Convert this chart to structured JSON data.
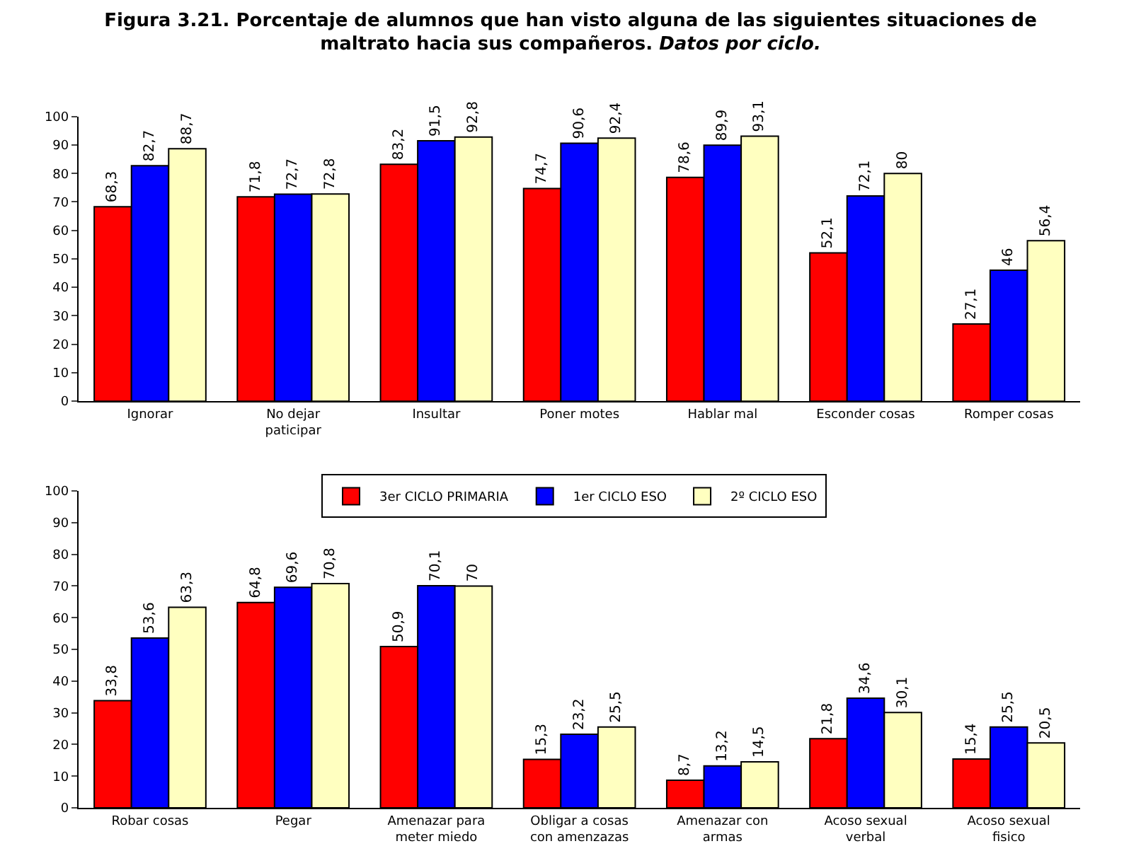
{
  "chart_data": [
    {
      "type": "bar",
      "title": "Figura 3.21. Porcentaje de alumnos que han visto alguna de las siguientes situaciones de maltrato hacia sus compañeros.",
      "subtitle": "Datos por ciclo.",
      "categories": [
        "Ignorar",
        "No dejar paticipar",
        "Insultar",
        "Poner motes",
        "Hablar mal",
        "Esconder cosas",
        "Romper cosas"
      ],
      "ylim": [
        0,
        100
      ],
      "yticks": [
        0,
        10,
        20,
        30,
        40,
        50,
        60,
        70,
        80,
        90,
        100
      ],
      "grid": false,
      "legend": false,
      "series": [
        {
          "color": "#ff0000",
          "values": [
            68.3,
            71.8,
            83.2,
            74.7,
            78.6,
            52.1,
            27.1
          ],
          "value_labels": [
            "68,3",
            "71,8",
            "83,2",
            "74,7",
            "78,6",
            "52,1",
            "27,1"
          ]
        },
        {
          "color": "#0000ff",
          "values": [
            82.7,
            72.7,
            91.5,
            90.6,
            89.9,
            72.1,
            46
          ],
          "value_labels": [
            "82,7",
            "72,7",
            "91,5",
            "90,6",
            "89,9",
            "72,1",
            "46"
          ]
        },
        {
          "color": "#ffffc0",
          "values": [
            88.7,
            72.8,
            92.8,
            92.4,
            93.1,
            80,
            56.4
          ],
          "value_labels": [
            "88,7",
            "72,8",
            "92,8",
            "92,4",
            "93,1",
            "80",
            "56,4"
          ]
        }
      ]
    },
    {
      "type": "bar",
      "categories": [
        "Robar cosas",
        "Pegar",
        "Amenazar para meter miedo",
        "Obligar a cosas con amenzazas",
        "Amenazar con armas",
        "Acoso sexual verbal",
        "Acoso sexual fisico"
      ],
      "ylim": [
        0,
        100
      ],
      "yticks": [
        0,
        10,
        20,
        30,
        40,
        50,
        60,
        70,
        80,
        90,
        100
      ],
      "grid": false,
      "legend": "top",
      "series": [
        {
          "name": "3er CICLO PRIMARIA",
          "color": "#ff0000",
          "values": [
            33.8,
            64.8,
            50.9,
            15.3,
            8.7,
            21.8,
            15.4
          ],
          "value_labels": [
            "33,8",
            "64,8",
            "50,9",
            "15,3",
            "8,7",
            "21,8",
            "15,4"
          ]
        },
        {
          "name": "1er CICLO ESO",
          "color": "#0000ff",
          "values": [
            53.6,
            69.6,
            70.1,
            23.2,
            13.2,
            34.6,
            25.5
          ],
          "value_labels": [
            "53,6",
            "69,6",
            "70,1",
            "23,2",
            "13,2",
            "34,6",
            "25,5"
          ]
        },
        {
          "name": "2º CICLO ESO",
          "color": "#ffffc0",
          "values": [
            63.3,
            70.8,
            70,
            25.5,
            14.5,
            30.1,
            20.5
          ],
          "value_labels": [
            "63,3",
            "70,8",
            "70",
            "25,5",
            "14,5",
            "30,1",
            "20,5"
          ]
        }
      ]
    }
  ]
}
